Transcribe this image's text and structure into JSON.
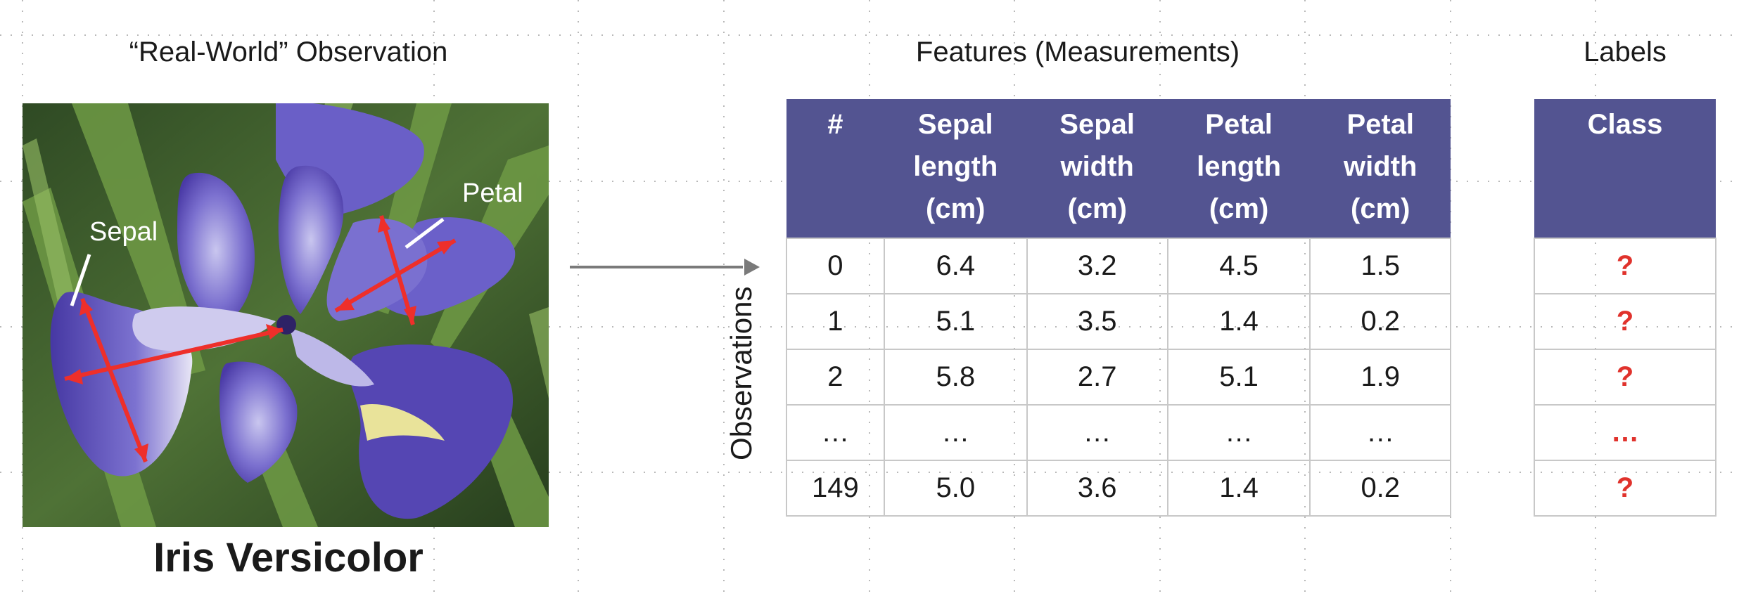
{
  "headings": {
    "observation": "“Real-World” Observation",
    "features": "Features (Measurements)",
    "labels": "Labels"
  },
  "photo_labels": {
    "sepal": "Sepal",
    "petal": "Petal"
  },
  "caption": "Iris Versicolor",
  "observations_axis": "Observations",
  "features_table": {
    "columns": [
      "#",
      "Sepal length (cm)",
      "Sepal width (cm)",
      "Petal length (cm)",
      "Petal width (cm)"
    ],
    "rows": [
      [
        "0",
        "6.4",
        "3.2",
        "4.5",
        "1.5"
      ],
      [
        "1",
        "5.1",
        "3.5",
        "1.4",
        "0.2"
      ],
      [
        "2",
        "5.8",
        "2.7",
        "5.1",
        "1.9"
      ],
      [
        "…",
        "…",
        "…",
        "…",
        "…"
      ],
      [
        "149",
        "5.0",
        "3.6",
        "1.4",
        "0.2"
      ]
    ]
  },
  "labels_table": {
    "header": "Class",
    "rows": [
      "?",
      "?",
      "?",
      "…",
      "?"
    ]
  },
  "colors": {
    "header_bg": "#535491",
    "label_red": "#e0322c",
    "arrow_red": "#ee2f2a",
    "grid_border": "#c8c8c8"
  }
}
